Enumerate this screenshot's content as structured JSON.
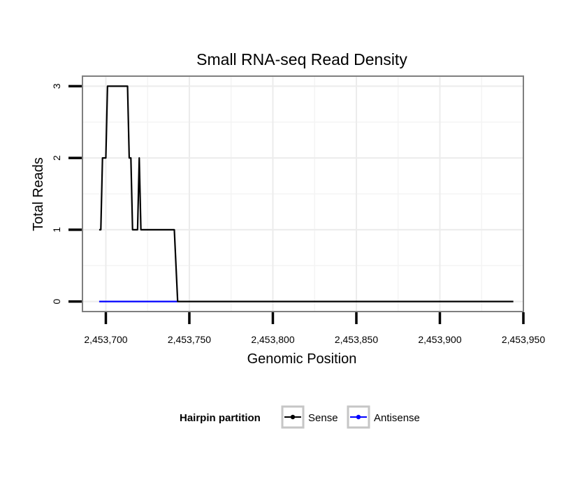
{
  "chart_data": {
    "type": "line",
    "title": "Small RNA-seq Read Density",
    "xlabel": "Genomic Position",
    "ylabel": "Total Reads",
    "xlim": [
      2453686,
      2453950
    ],
    "ylim": [
      -0.14,
      3.14
    ],
    "x_ticks": [
      2453700,
      2453750,
      2453800,
      2453850,
      2453900,
      2453950
    ],
    "x_tick_labels": [
      "2,453,700",
      "2,453,750",
      "2,453,800",
      "2,453,850",
      "2,453,900",
      "2,453,950"
    ],
    "y_ticks": [
      0,
      1,
      2,
      3
    ],
    "y_tick_labels": [
      "0",
      "1",
      "2",
      "3"
    ],
    "grid": true,
    "legend_position": "bottom",
    "legend_title": "Hairpin partition",
    "series": [
      {
        "name": "Sense",
        "color": "#000000",
        "x": [
          2453696,
          2453697,
          2453698,
          2453700,
          2453701,
          2453713,
          2453714,
          2453715,
          2453716,
          2453719,
          2453720,
          2453721,
          2453741,
          2453743,
          2453944
        ],
        "y": [
          1,
          1,
          2,
          2,
          3,
          3,
          2,
          2,
          1,
          1,
          2,
          1,
          1,
          0,
          0
        ]
      },
      {
        "name": "Antisense",
        "color": "#0000ff",
        "x": [
          2453696,
          2453743
        ],
        "y": [
          0,
          0
        ]
      }
    ]
  }
}
